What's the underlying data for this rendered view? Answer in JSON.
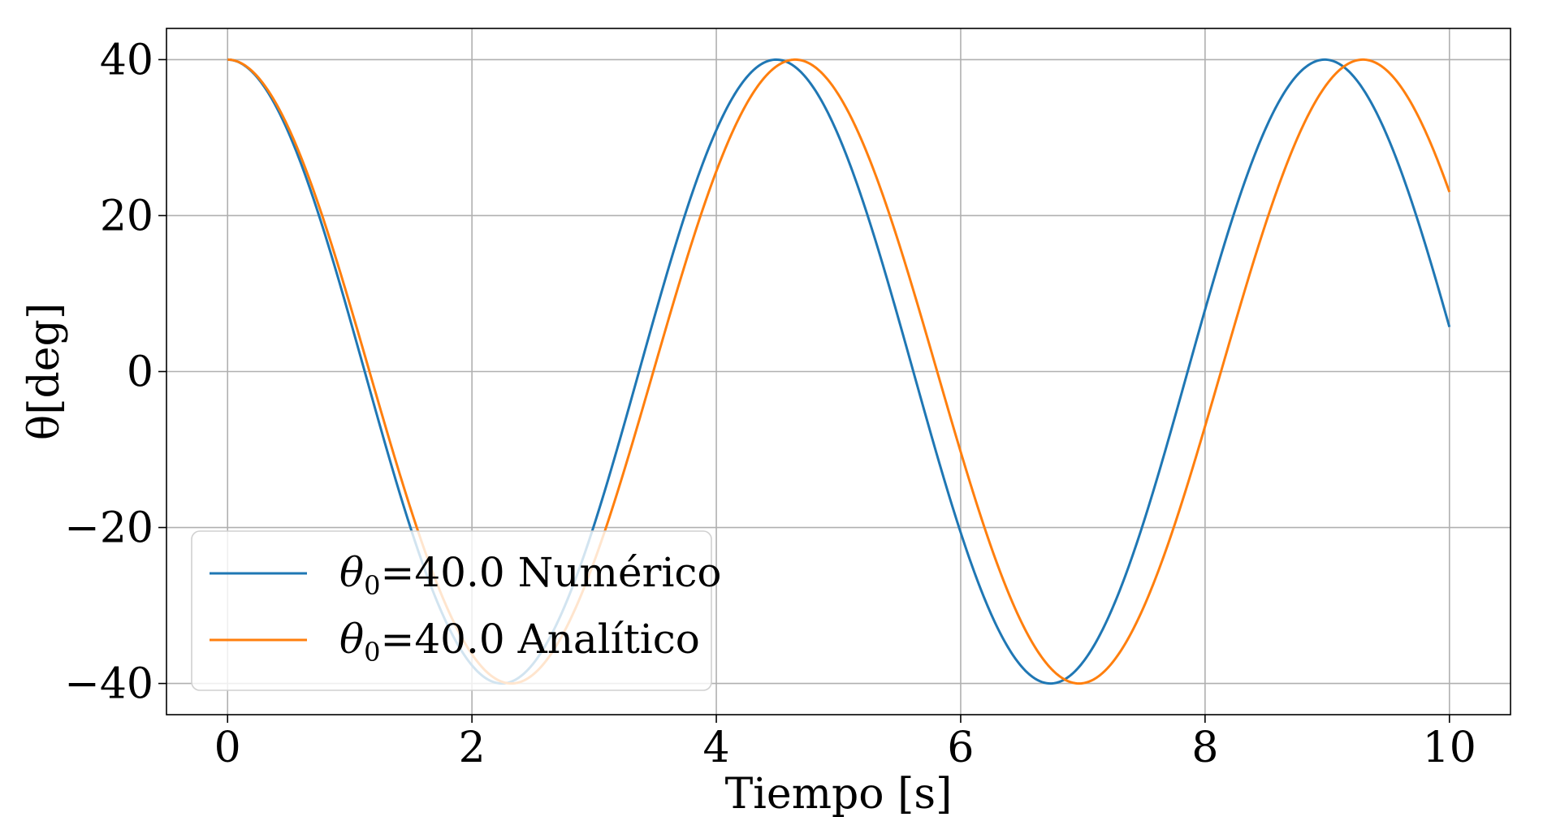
{
  "chart_data": {
    "type": "line",
    "title": "",
    "xlabel": "Tiempo [s]",
    "ylabel": "θ[deg]",
    "xlim": [
      -0.5,
      10.5
    ],
    "ylim": [
      -44,
      44
    ],
    "xticks": [
      0,
      2,
      4,
      6,
      8,
      10
    ],
    "yticks": [
      -40,
      -20,
      0,
      20,
      40
    ],
    "xtick_labels": [
      "0",
      "2",
      "4",
      "6",
      "8",
      "10"
    ],
    "ytick_labels": [
      "−40",
      "−20",
      "0",
      "20",
      "40"
    ],
    "grid": true,
    "legend_position": "lower-left",
    "x_start": 0,
    "x_end": 10,
    "series": [
      {
        "name": "θ0=40.0 Numérico",
        "color": "#1f77b4",
        "amplitude": 40,
        "period": 4.49
      },
      {
        "name": "θ0=40.0 Analítico",
        "color": "#ff7f0e",
        "amplitude": 40,
        "period": 4.646
      }
    ]
  },
  "legend": {
    "items": [
      {
        "prefix": "θ",
        "sub": "0",
        "rest": "=40.0 Numérico"
      },
      {
        "prefix": "θ",
        "sub": "0",
        "rest": "=40.0 Analítico"
      }
    ]
  }
}
